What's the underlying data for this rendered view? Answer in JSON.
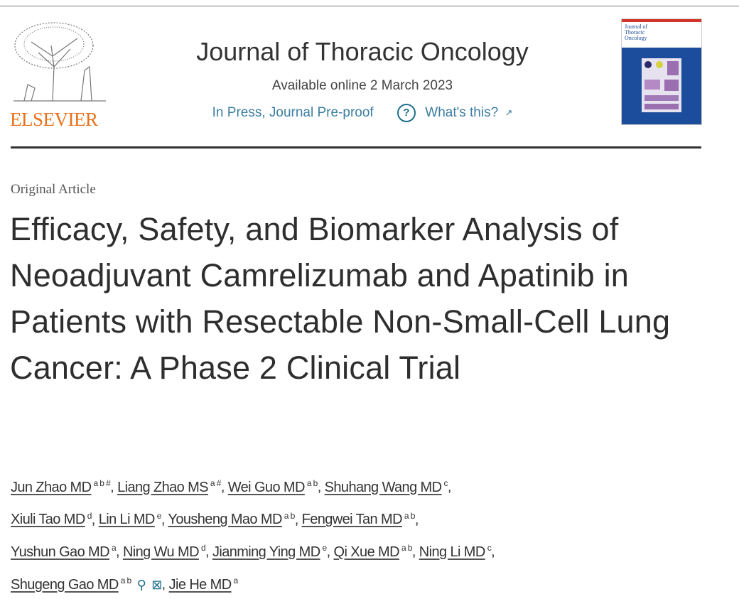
{
  "publisher": {
    "name": "ELSEVIER",
    "brand_color": "#e9711c"
  },
  "journal": {
    "title": "Journal of Thoracic Oncology",
    "available": "Available online 2 March 2023",
    "status": "In Press, Journal Pre-proof",
    "help_link": "What's this?",
    "help_icon": "question-circle-icon",
    "external_icon": "↗",
    "link_color": "#3b7ea1",
    "cover_title": [
      "Journal of",
      "Thoracic",
      "Oncology"
    ]
  },
  "article": {
    "type": "Original Article",
    "title": "Efficacy, Safety, and Biomarker Analysis of Neoadjuvant Camrelizumab and Apatinib in Patients with Resectable Non-Small-Cell Lung Cancer: A Phase 2 Clinical Trial",
    "authors": [
      {
        "name": "Jun Zhao MD",
        "aff": "a b #"
      },
      {
        "name": "Liang Zhao MS",
        "aff": "a #"
      },
      {
        "name": "Wei Guo MD",
        "aff": "a b"
      },
      {
        "name": "Shuhang Wang MD",
        "aff": "c"
      },
      {
        "name": "Xiuli Tao MD",
        "aff": "d"
      },
      {
        "name": "Lin Li MD",
        "aff": "e"
      },
      {
        "name": "Yousheng Mao MD",
        "aff": "a b"
      },
      {
        "name": "Fengwei Tan MD",
        "aff": "a b"
      },
      {
        "name": "Yushun Gao MD",
        "aff": "a"
      },
      {
        "name": "Ning Wu MD",
        "aff": "d"
      },
      {
        "name": "Jianming Ying MD",
        "aff": "e"
      },
      {
        "name": "Qi Xue MD",
        "aff": "a b"
      },
      {
        "name": "Ning Li MD",
        "aff": "c"
      },
      {
        "name": "Shugeng Gao MD",
        "aff": "a b",
        "icons": [
          "person-icon",
          "email-icon"
        ]
      },
      {
        "name": "Jie He MD",
        "aff": "a"
      }
    ]
  }
}
